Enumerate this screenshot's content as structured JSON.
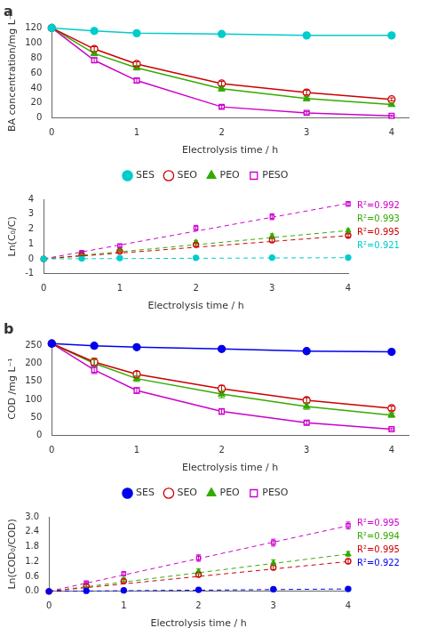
{
  "chart_data": [
    {
      "type": "line",
      "title": "a",
      "x_label": "Electrolysis time / h",
      "y_label": "BA concentration/mg L⁻¹",
      "xlim": [
        0,
        4.2
      ],
      "xticks": [
        0,
        1,
        2,
        3,
        4
      ],
      "ylim": [
        0,
        125
      ],
      "yticks": [
        0,
        20,
        40,
        60,
        80,
        100,
        120
      ],
      "grid": false,
      "legend": "bottom",
      "series": [
        {
          "name": "SES",
          "color": "#00CCCC",
          "marker": "circle",
          "line_style": "solid",
          "x": [
            0,
            0.5,
            1,
            2,
            3,
            4
          ],
          "values": [
            120,
            116,
            113,
            112,
            110,
            110
          ],
          "errors": [
            0,
            1.5,
            1.5,
            1.5,
            1.5,
            1.5
          ]
        },
        {
          "name": "SEO",
          "color": "#CC0000",
          "marker": "circle-open",
          "line_style": "solid",
          "x": [
            0,
            0.5,
            1,
            2,
            3,
            4
          ],
          "values": [
            120,
            92,
            72,
            46,
            34,
            25
          ],
          "errors": [
            0,
            3,
            3,
            3,
            3,
            2
          ]
        },
        {
          "name": "PEO",
          "color": "#33AA00",
          "marker": "triangle",
          "line_style": "solid",
          "x": [
            0,
            0.5,
            1,
            2,
            3,
            4
          ],
          "values": [
            120,
            86,
            67,
            39,
            26,
            18
          ],
          "errors": [
            0,
            3,
            3,
            3,
            3,
            2
          ]
        },
        {
          "name": "PESO",
          "color": "#CC00CC",
          "marker": "square-open",
          "line_style": "solid",
          "x": [
            0,
            0.5,
            1,
            2,
            3,
            4
          ],
          "values": [
            120,
            77,
            50,
            15,
            7,
            3
          ],
          "errors": [
            0,
            3,
            3,
            2,
            1.5,
            1
          ]
        }
      ]
    },
    {
      "type": "line",
      "x_label": "Electrolysis time / h",
      "y_label": "Ln(C₀/C)",
      "xlim": [
        0,
        4
      ],
      "xticks": [
        0,
        1,
        2,
        3,
        4
      ],
      "ylim": [
        -1,
        4
      ],
      "yticks": [
        -1,
        0,
        1,
        2,
        3,
        4
      ],
      "grid": false,
      "series": [
        {
          "color": "#00CCCC",
          "marker": "circle",
          "line_style": "none",
          "x": [
            0,
            0.5,
            1,
            2,
            3,
            4
          ],
          "values": [
            0,
            0.035,
            0.06,
            0.07,
            0.087,
            0.087
          ],
          "errors": [
            0,
            0.05,
            0.05,
            0.05,
            0.05,
            0.05
          ]
        },
        {
          "color": "#CC0000",
          "marker": "circle-open",
          "line_style": "none",
          "x": [
            0,
            0.5,
            1,
            2,
            3,
            4
          ],
          "values": [
            0,
            0.27,
            0.51,
            0.95,
            1.25,
            1.57
          ],
          "errors": [
            0,
            0.05,
            0.07,
            0.1,
            0.12,
            0.1
          ]
        },
        {
          "color": "#33AA00",
          "marker": "triangle",
          "line_style": "none",
          "x": [
            0,
            0.5,
            1,
            2,
            3,
            4
          ],
          "values": [
            0,
            0.33,
            0.58,
            1.12,
            1.53,
            1.9
          ],
          "errors": [
            0,
            0.06,
            0.08,
            0.12,
            0.15,
            0.12
          ]
        },
        {
          "color": "#CC00CC",
          "marker": "square-open",
          "line_style": "none",
          "x": [
            0,
            0.5,
            1,
            2,
            3,
            4
          ],
          "values": [
            0,
            0.44,
            0.88,
            2.08,
            2.83,
            3.69
          ],
          "errors": [
            0,
            0.06,
            0.1,
            0.17,
            0.2,
            0.16
          ]
        }
      ],
      "fit_lines": [
        {
          "color": "#00CCCC",
          "line_style": "dashed",
          "x": [
            0,
            4
          ],
          "values": [
            0,
            0.08
          ]
        },
        {
          "color": "#CC0000",
          "line_style": "dashed",
          "x": [
            0,
            4
          ],
          "values": [
            0,
            1.56
          ]
        },
        {
          "color": "#33AA00",
          "line_style": "dashed",
          "x": [
            0,
            4
          ],
          "values": [
            0,
            1.9
          ]
        },
        {
          "color": "#CC00CC",
          "line_style": "dashed",
          "x": [
            0,
            4
          ],
          "values": [
            0,
            3.72
          ]
        }
      ],
      "annotations": [
        {
          "text": "R²=0.992",
          "color": "#CC00CC"
        },
        {
          "text": "R²=0.993",
          "color": "#33AA00"
        },
        {
          "text": "R²=0.995",
          "color": "#CC0000"
        },
        {
          "text": "R²=0.921",
          "color": "#00CCCC"
        }
      ]
    },
    {
      "type": "line",
      "title": "b",
      "x_label": "Electrolysis time / h",
      "y_label": "COD /mg L⁻¹",
      "xlim": [
        0,
        4.2
      ],
      "xticks": [
        0,
        1,
        2,
        3,
        4
      ],
      "ylim": [
        0,
        260
      ],
      "yticks": [
        0,
        50,
        100,
        150,
        200,
        250
      ],
      "grid": false,
      "legend": "bottom",
      "series": [
        {
          "name": "SES",
          "color": "#0000EE",
          "marker": "circle",
          "line_style": "solid",
          "x": [
            0,
            0.5,
            1,
            2,
            3,
            4
          ],
          "values": [
            255,
            249,
            245,
            240,
            234,
            232
          ],
          "errors": [
            0,
            3,
            3,
            4,
            3,
            3
          ]
        },
        {
          "name": "SEO",
          "color": "#CC0000",
          "marker": "circle-open",
          "line_style": "solid",
          "x": [
            0,
            0.5,
            1,
            2,
            3,
            4
          ],
          "values": [
            255,
            204,
            170,
            130,
            98,
            76
          ],
          "errors": [
            0,
            10,
            8,
            9,
            7,
            6
          ]
        },
        {
          "name": "PEO",
          "color": "#33AA00",
          "marker": "triangle",
          "line_style": "solid",
          "x": [
            0,
            0.5,
            1,
            2,
            3,
            4
          ],
          "values": [
            255,
            200,
            158,
            115,
            81,
            57
          ],
          "errors": [
            0,
            10,
            8,
            10,
            8,
            6
          ]
        },
        {
          "name": "PESO",
          "color": "#CC00CC",
          "marker": "square-open",
          "line_style": "solid",
          "x": [
            0,
            0.5,
            1,
            2,
            3,
            4
          ],
          "values": [
            255,
            182,
            125,
            67,
            36,
            18
          ],
          "errors": [
            0,
            10,
            8,
            8,
            5,
            3
          ]
        }
      ]
    },
    {
      "type": "line",
      "x_label": "Electrolysis time / h",
      "y_label": "Ln(COD₀/COD)",
      "xlim": [
        0,
        4
      ],
      "xticks": [
        0,
        1,
        2,
        3,
        4
      ],
      "ylim": [
        0,
        3.0
      ],
      "yticks": [
        {
          "value": 0,
          "label": "0.0"
        },
        0.6,
        1.2,
        1.8,
        2.4,
        {
          "value": 3,
          "label": "3.0"
        }
      ],
      "grid": false,
      "series": [
        {
          "color": "#0000EE",
          "marker": "circle",
          "line_style": "none",
          "x": [
            0,
            0.5,
            1,
            2,
            3,
            4
          ],
          "values": [
            0,
            0.024,
            0.041,
            0.061,
            0.085,
            0.096
          ],
          "errors": [
            0,
            0.01,
            0.01,
            0.02,
            0.02,
            0.02
          ]
        },
        {
          "color": "#CC0000",
          "marker": "circle-open",
          "line_style": "none",
          "x": [
            0,
            0.5,
            1,
            2,
            3,
            4
          ],
          "values": [
            0,
            0.22,
            0.41,
            0.67,
            0.96,
            1.21
          ],
          "errors": [
            0,
            0.05,
            0.06,
            0.08,
            0.09,
            0.09
          ]
        },
        {
          "color": "#33AA00",
          "marker": "triangle",
          "line_style": "none",
          "x": [
            0,
            0.5,
            1,
            2,
            3,
            4
          ],
          "values": [
            0,
            0.24,
            0.47,
            0.8,
            1.15,
            1.5
          ],
          "errors": [
            0,
            0.05,
            0.07,
            0.1,
            0.12,
            0.1
          ]
        },
        {
          "color": "#CC00CC",
          "marker": "square-open",
          "line_style": "none",
          "x": [
            0,
            0.5,
            1,
            2,
            3,
            4
          ],
          "values": [
            0,
            0.34,
            0.71,
            1.34,
            1.96,
            2.65
          ],
          "errors": [
            0,
            0.05,
            0.08,
            0.13,
            0.14,
            0.14
          ]
        }
      ],
      "fit_lines": [
        {
          "color": "#0000EE",
          "line_style": "dashed",
          "x": [
            0,
            4
          ],
          "values": [
            0,
            0.096
          ]
        },
        {
          "color": "#CC0000",
          "line_style": "dashed",
          "x": [
            0,
            4
          ],
          "values": [
            0,
            1.2
          ]
        },
        {
          "color": "#33AA00",
          "line_style": "dashed",
          "x": [
            0,
            4
          ],
          "values": [
            0,
            1.5
          ]
        },
        {
          "color": "#CC00CC",
          "line_style": "dashed",
          "x": [
            0,
            4
          ],
          "values": [
            0,
            2.64
          ]
        }
      ],
      "annotations": [
        {
          "text": "R²=0.995",
          "color": "#CC00CC"
        },
        {
          "text": "R²=0.994",
          "color": "#33AA00"
        },
        {
          "text": "R²=0.995",
          "color": "#CC0000"
        },
        {
          "text": "R²=0.922",
          "color": "#0000EE"
        }
      ]
    }
  ]
}
